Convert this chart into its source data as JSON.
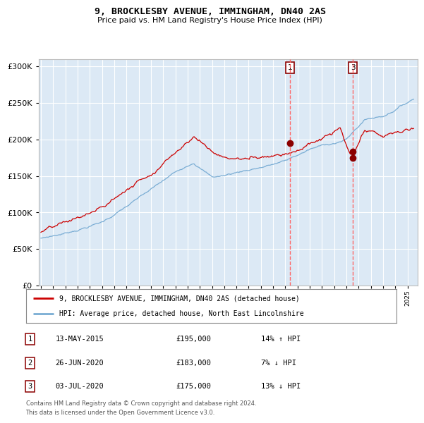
{
  "title": "9, BROCKLESBY AVENUE, IMMINGHAM, DN40 2AS",
  "subtitle": "Price paid vs. HM Land Registry's House Price Index (HPI)",
  "legend_line1": "9, BROCKLESBY AVENUE, IMMINGHAM, DN40 2AS (detached house)",
  "legend_line2": "HPI: Average price, detached house, North East Lincolnshire",
  "footnote1": "Contains HM Land Registry data © Crown copyright and database right 2024.",
  "footnote2": "This data is licensed under the Open Government Licence v3.0.",
  "table": [
    {
      "num": "1",
      "date": "13-MAY-2015",
      "price": "£195,000",
      "hpi": "14% ↑ HPI"
    },
    {
      "num": "2",
      "date": "26-JUN-2020",
      "price": "£183,000",
      "hpi": "7% ↓ HPI"
    },
    {
      "num": "3",
      "date": "03-JUL-2020",
      "price": "£175,000",
      "hpi": "13% ↓ HPI"
    }
  ],
  "vline1_year": 2015.36,
  "vline2_year": 2020.52,
  "marker1_year": 2015.36,
  "marker1_val": 195000,
  "marker2_year": 2020.52,
  "marker2_val": 183000,
  "marker3_year": 2020.52,
  "marker3_val": 175000,
  "ylim": [
    0,
    310000
  ],
  "xlim_start": 1994.8,
  "xlim_end": 2025.8,
  "plot_bg": "#dce9f5",
  "red_line_color": "#cc0000",
  "blue_line_color": "#7aadd4",
  "vline_color": "#ff6666",
  "marker_color": "#8b0000",
  "annotation_box_color": "#8b0000",
  "grid_color": "#ffffff"
}
